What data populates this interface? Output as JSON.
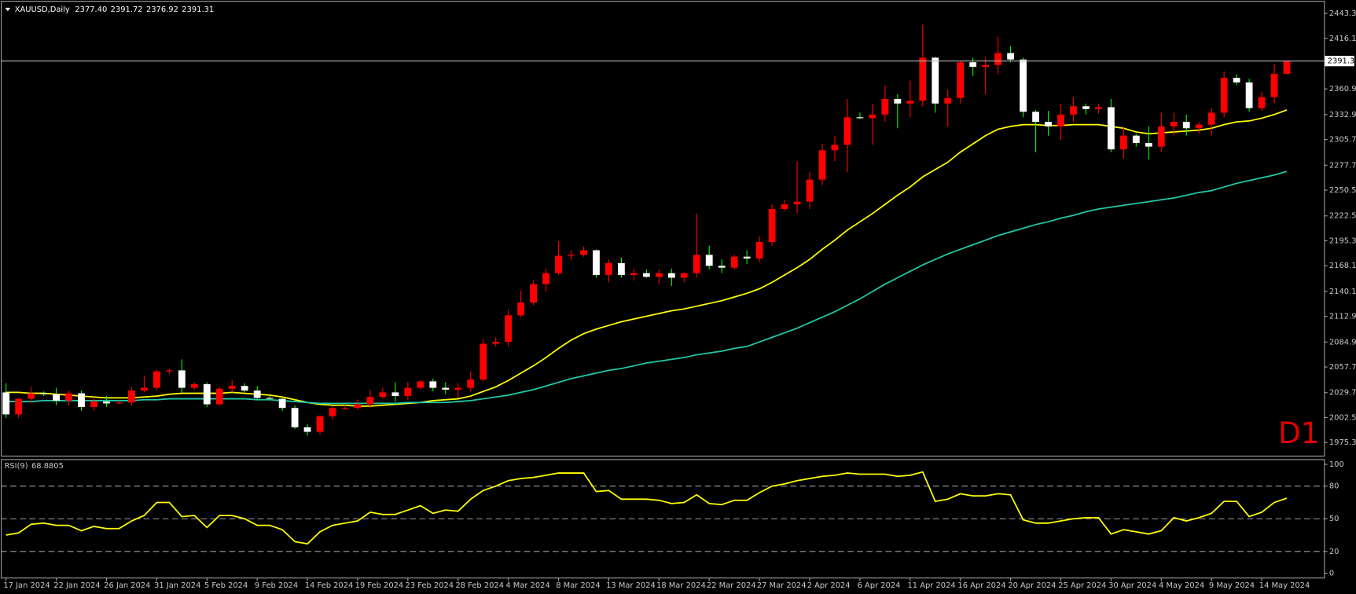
{
  "chart_data": [
    {
      "type": "candlestick",
      "title": "XAUUSD,Daily",
      "last_bar_labels": [
        "2377.40",
        "2391.72",
        "2376.92",
        "2391.31"
      ],
      "timeframe_label": "D1",
      "timeframe_label_color": "#e00000",
      "categories": [
        "17 Jan 2024",
        null,
        null,
        null,
        "22 Jan 2024",
        null,
        null,
        null,
        "26 Jan 2024",
        null,
        null,
        null,
        "31 Jan 2024",
        null,
        null,
        null,
        "5 Feb 2024",
        null,
        null,
        null,
        "9 Feb 2024",
        null,
        null,
        null,
        "14 Feb 2024",
        null,
        null,
        null,
        "19 Feb 2024",
        null,
        null,
        null,
        "23 Feb 2024",
        null,
        null,
        null,
        "28 Feb 2024",
        null,
        null,
        null,
        "4 Mar 2024",
        null,
        null,
        null,
        "8 Mar 2024",
        null,
        null,
        null,
        "13 Mar 2024",
        null,
        null,
        null,
        "18 Mar 2024",
        null,
        null,
        null,
        "22 Mar 2024",
        null,
        null,
        null,
        "27 Mar 2024",
        null,
        null,
        null,
        "2 Apr 2024",
        null,
        null,
        null,
        "6 Apr 2024",
        null,
        null,
        null,
        "11 Apr 2024",
        null,
        null,
        null,
        "16 Apr 2024",
        null,
        null,
        null,
        "20 Apr 2024",
        null,
        null,
        null,
        "25 Apr 2024",
        null,
        null,
        null,
        "30 Apr 2024",
        null,
        null,
        null,
        "4 May 2024",
        null,
        null,
        null,
        "9 May 2024",
        null,
        null,
        null,
        "14 May 2024",
        null,
        null
      ],
      "open": [
        2030,
        2006,
        2023,
        2029,
        2028,
        2021,
        2029,
        2014,
        2020,
        2018,
        2019,
        2032,
        2035,
        2053,
        2054,
        2035,
        2039,
        2017,
        2034,
        2037,
        2032,
        2024,
        2023,
        2013,
        1992,
        1987,
        2004,
        2013,
        2013,
        2017,
        2025,
        2030,
        2026,
        2035,
        2042,
        2035,
        2033,
        2035,
        2044,
        2083,
        2085,
        2114,
        2128,
        2148,
        2160,
        2179,
        2180,
        2185,
        2158,
        2171,
        2158,
        2160,
        2156,
        2160,
        2155,
        2160,
        2180,
        2168,
        2166,
        2178,
        2176,
        2194,
        2230,
        2235,
        2238,
        2262,
        2294,
        2300,
        2330,
        2329,
        2333,
        2350,
        2345,
        2348,
        2395,
        2345,
        2351,
        2390,
        2385,
        2387,
        2400,
        2393,
        2336,
        2325,
        2320,
        2333,
        2342,
        2339,
        2341,
        2295,
        2310,
        2302,
        2298,
        2320,
        2325,
        2318,
        2322,
        2335,
        2373,
        2368,
        2340,
        2352,
        2377.4
      ],
      "high": [
        2040,
        2024,
        2036,
        2031,
        2035,
        2032,
        2032,
        2025,
        2026,
        2021,
        2036,
        2048,
        2055,
        2056,
        2066,
        2041,
        2041,
        2036,
        2043,
        2040,
        2037,
        2026,
        2025,
        2016,
        1995,
        2005,
        2015,
        2016,
        2022,
        2033,
        2035,
        2041,
        2041,
        2043,
        2045,
        2041,
        2040,
        2053,
        2088,
        2090,
        2120,
        2141,
        2152,
        2165,
        2195,
        2185,
        2189,
        2186,
        2175,
        2177,
        2165,
        2164,
        2164,
        2165,
        2161,
        2225,
        2190,
        2175,
        2180,
        2185,
        2200,
        2235,
        2240,
        2282,
        2270,
        2301,
        2310,
        2350,
        2335,
        2345,
        2365,
        2355,
        2370,
        2431,
        2396,
        2360,
        2392,
        2395,
        2395,
        2418,
        2408,
        2395,
        2338,
        2337,
        2345,
        2352,
        2345,
        2345,
        2350,
        2320,
        2312,
        2320,
        2335,
        2335,
        2333,
        2325,
        2340,
        2380,
        2377,
        2372,
        2358,
        2388,
        2391.72
      ],
      "low": [
        2002,
        2002,
        2018,
        2026,
        2016,
        2016,
        2010,
        2010,
        2014,
        2017,
        2016,
        2030,
        2032,
        2050,
        2030,
        2033,
        2014,
        2016,
        2030,
        2030,
        2022,
        2022,
        2010,
        1990,
        1983,
        1984,
        2000,
        2011,
        2011,
        2013,
        2023,
        2020,
        2022,
        2033,
        2031,
        2028,
        2024,
        2031,
        2042,
        2080,
        2080,
        2112,
        2125,
        2140,
        2158,
        2174,
        2178,
        2155,
        2150,
        2155,
        2152,
        2155,
        2148,
        2146,
        2150,
        2155,
        2164,
        2160,
        2164,
        2170,
        2172,
        2190,
        2228,
        2225,
        2230,
        2256,
        2282,
        2270,
        2328,
        2300,
        2325,
        2318,
        2330,
        2342,
        2335,
        2320,
        2345,
        2375,
        2355,
        2377,
        2390,
        2330,
        2292,
        2310,
        2305,
        2325,
        2333,
        2334,
        2292,
        2285,
        2298,
        2284,
        2292,
        2310,
        2310,
        2312,
        2310,
        2330,
        2365,
        2336,
        2337,
        2345,
        2376.92
      ],
      "close": [
        2006,
        2023,
        2029,
        2028,
        2021,
        2029,
        2014,
        2020,
        2018,
        2019,
        2032,
        2035,
        2053,
        2054,
        2035,
        2039,
        2017,
        2034,
        2037,
        2032,
        2024,
        2023,
        2013,
        1992,
        1987,
        2004,
        2013,
        2013,
        2017,
        2025,
        2030,
        2026,
        2035,
        2042,
        2035,
        2033,
        2035,
        2044,
        2083,
        2085,
        2114,
        2128,
        2148,
        2160,
        2179,
        2180,
        2185,
        2158,
        2171,
        2158,
        2160,
        2156,
        2160,
        2155,
        2160,
        2180,
        2168,
        2166,
        2178,
        2176,
        2194,
        2230,
        2235,
        2238,
        2262,
        2294,
        2300,
        2330,
        2329,
        2333,
        2350,
        2345,
        2348,
        2395,
        2345,
        2351,
        2390,
        2385,
        2387,
        2400,
        2393,
        2336,
        2325,
        2320,
        2333,
        2342,
        2339,
        2341,
        2295,
        2310,
        2302,
        2298,
        2320,
        2325,
        2318,
        2322,
        2335,
        2373,
        2368,
        2340,
        2352,
        2377.4,
        2391.31
      ],
      "up_color": "#ff0000",
      "down_color": "#ffffff",
      "down_wick_color": "#00ff00",
      "overlays": [
        {
          "color": "#ffff00",
          "values": [
            2030,
            2030,
            2029,
            2029,
            2028,
            2027,
            2026,
            2025,
            2024,
            2024,
            2024,
            2025,
            2026,
            2028,
            2029,
            2029,
            2029,
            2029,
            2030,
            2029,
            2028,
            2027,
            2025,
            2022,
            2019,
            2017,
            2016,
            2016,
            2015,
            2015,
            2016,
            2017,
            2018,
            2019,
            2021,
            2022,
            2023,
            2026,
            2031,
            2036,
            2043,
            2051,
            2059,
            2068,
            2078,
            2087,
            2094,
            2099,
            2103,
            2107,
            2110,
            2113,
            2116,
            2119,
            2121,
            2124,
            2127,
            2130,
            2134,
            2138,
            2143,
            2150,
            2158,
            2166,
            2175,
            2186,
            2196,
            2207,
            2216,
            2225,
            2235,
            2245,
            2254,
            2265,
            2273,
            2281,
            2292,
            2301,
            2310,
            2317,
            2320,
            2322,
            2322,
            2321,
            2321,
            2322,
            2322,
            2322,
            2320,
            2318,
            2314,
            2312,
            2313,
            2314,
            2315,
            2316,
            2318,
            2322,
            2325,
            2326,
            2329,
            2333,
            2338
          ]
        },
        {
          "color": "#20c8a8",
          "values": [
            2020,
            2020,
            2020,
            2021,
            2021,
            2021,
            2021,
            2021,
            2021,
            2021,
            2021,
            2022,
            2022,
            2023,
            2023,
            2023,
            2023,
            2023,
            2023,
            2023,
            2022,
            2022,
            2021,
            2020,
            2019,
            2018,
            2018,
            2018,
            2018,
            2018,
            2018,
            2018,
            2019,
            2019,
            2019,
            2019,
            2020,
            2021,
            2023,
            2025,
            2027,
            2030,
            2033,
            2037,
            2041,
            2045,
            2048,
            2051,
            2054,
            2056,
            2059,
            2062,
            2064,
            2066,
            2068,
            2071,
            2073,
            2075,
            2078,
            2080,
            2085,
            2090,
            2095,
            2100,
            2106,
            2112,
            2118,
            2125,
            2132,
            2140,
            2148,
            2155,
            2162,
            2169,
            2175,
            2181,
            2186,
            2191,
            2196,
            2201,
            2205,
            2209,
            2213,
            2216,
            2220,
            2223,
            2227,
            2230,
            2232,
            2234,
            2236,
            2238,
            2240,
            2242,
            2245,
            2248,
            2250,
            2254,
            2258,
            2261,
            2264,
            2267,
            2271
          ]
        }
      ],
      "price_line_color": "#b0b0b0",
      "ylim": [
        1961,
        2456
      ],
      "yticks": [
        {
          "value": 2443.3,
          "label": "2443.30"
        },
        {
          "value": 2416.1,
          "label": "2416.10"
        },
        {
          "value": 2360.9,
          "label": "2360.90"
        },
        {
          "value": 2332.9,
          "label": "2332.90"
        },
        {
          "value": 2305.7,
          "label": "2305.70"
        },
        {
          "value": 2277.7,
          "label": "2277.70"
        },
        {
          "value": 2250.5,
          "label": "2250.50"
        },
        {
          "value": 2222.5,
          "label": "2222.50"
        },
        {
          "value": 2195.3,
          "label": "2195.30"
        },
        {
          "value": 2168.1,
          "label": "2168.10"
        },
        {
          "value": 2140.1,
          "label": "2140.10"
        },
        {
          "value": 2112.9,
          "label": "2112.90"
        },
        {
          "value": 2084.9,
          "label": "2084.90"
        },
        {
          "value": 2057.7,
          "label": "2057.70"
        },
        {
          "value": 2029.7,
          "label": "2029.70"
        },
        {
          "value": 2002.5,
          "label": "2002.50"
        },
        {
          "value": 1975.3,
          "label": "1975.30"
        }
      ]
    },
    {
      "type": "line",
      "title": "RSI(9)",
      "color": "#ffff00",
      "values": [
        35,
        37,
        45,
        46,
        44,
        44,
        39,
        43,
        41,
        41,
        48,
        53,
        65,
        65,
        52,
        53,
        42,
        53,
        53,
        50,
        44,
        44,
        40,
        29,
        27,
        38,
        44,
        46,
        48,
        56,
        54,
        54,
        58,
        62,
        55,
        58,
        57,
        68,
        76,
        80,
        85,
        87,
        88,
        90,
        92,
        92,
        92,
        75,
        76,
        68,
        68,
        68,
        67,
        64,
        65,
        72,
        64,
        63,
        67,
        67,
        74,
        80,
        82,
        85,
        87,
        89,
        90,
        92,
        91,
        91,
        91,
        89,
        90,
        93,
        66,
        68,
        73,
        71,
        71,
        73,
        72,
        49,
        46,
        46,
        48,
        50,
        51,
        51,
        36,
        40,
        38,
        36,
        39,
        51,
        48,
        51,
        55,
        66,
        66,
        52,
        56,
        65,
        68.8805
      ],
      "ylim": [
        -4,
        104
      ],
      "yticks": [
        0,
        20,
        50,
        80,
        100
      ],
      "levels": [
        20,
        50,
        80
      ]
    }
  ]
}
